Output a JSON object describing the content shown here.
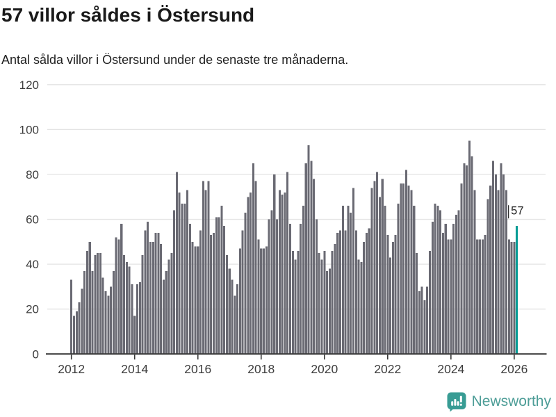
{
  "title": "57 villor såldes i Östersund",
  "subtitle": "Antal sålda villor i Östersund under de senaste tre månaderna.",
  "annotation": {
    "label": "57"
  },
  "branding": {
    "name": "Newsworthy",
    "icon": "chart-speech-bubble"
  },
  "colors": {
    "bar": "#6a6a73",
    "highlight": "#009b94",
    "grid": "#e3e3e3",
    "axis": "#383838",
    "axis_text": "#3d3d3d",
    "title_text": "#1a1a1a",
    "annotation_text": "#222222",
    "brand_icon": "#389c94",
    "brand_text": "#4d9d97"
  },
  "chart_data": {
    "type": "bar",
    "title": "57 villor såldes i Östersund",
    "subtitle": "Antal sålda villor i Östersund under de senaste tre månaderna.",
    "xlabel": "",
    "ylabel": "",
    "ylim": [
      0,
      120
    ],
    "y_ticks": [
      0,
      20,
      40,
      60,
      80,
      100,
      120
    ],
    "x_tick_labels": [
      "2012",
      "2014",
      "2016",
      "2018",
      "2020",
      "2022",
      "2024",
      "2026"
    ],
    "grid": "horizontal",
    "frequency": "monthly",
    "start_year": 2012,
    "start_month": 1,
    "highlight_last_value": 57,
    "values": [
      33,
      17,
      19,
      23,
      29,
      37,
      46,
      50,
      37,
      44,
      45,
      45,
      34,
      28,
      26,
      30,
      37,
      52,
      51,
      58,
      44,
      41,
      39,
      31,
      17,
      31,
      32,
      44,
      55,
      59,
      50,
      50,
      54,
      54,
      49,
      33,
      37,
      42,
      45,
      64,
      81,
      72,
      67,
      67,
      73,
      58,
      50,
      48,
      48,
      55,
      77,
      73,
      77,
      53,
      54,
      61,
      61,
      66,
      57,
      44,
      38,
      33,
      26,
      31,
      47,
      55,
      63,
      70,
      72,
      85,
      77,
      51,
      47,
      47,
      48,
      60,
      64,
      80,
      60,
      73,
      71,
      72,
      81,
      58,
      46,
      42,
      46,
      58,
      66,
      85,
      93,
      86,
      78,
      60,
      45,
      42,
      46,
      37,
      38,
      46,
      49,
      54,
      55,
      66,
      55,
      66,
      63,
      74,
      55,
      42,
      41,
      50,
      54,
      56,
      74,
      77,
      81,
      70,
      78,
      66,
      53,
      43,
      50,
      53,
      67,
      76,
      76,
      82,
      75,
      73,
      66,
      45,
      28,
      30,
      24,
      30,
      46,
      59,
      67,
      66,
      64,
      54,
      58,
      51,
      51,
      58,
      62,
      64,
      76,
      85,
      84,
      95,
      88,
      73,
      51,
      51,
      51,
      53,
      69,
      75,
      86,
      80,
      73,
      85,
      80,
      73,
      51,
      50,
      50,
      57
    ]
  }
}
